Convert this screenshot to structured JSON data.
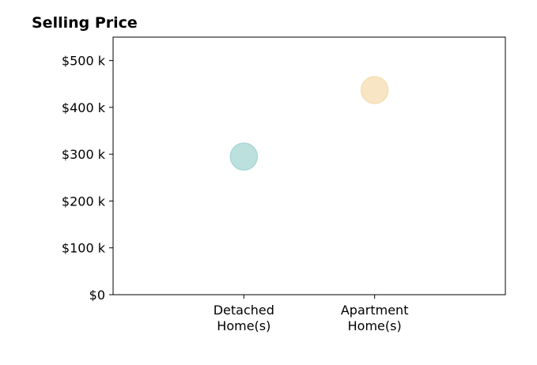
{
  "chart_data": {
    "type": "scatter",
    "title": "Selling Price",
    "xlabel": "",
    "ylabel": "",
    "categories": [
      [
        "Detached",
        "Home(s)"
      ],
      [
        "Apartment",
        "Home(s)"
      ]
    ],
    "xlim": [
      0,
      3
    ],
    "ylim": [
      0,
      550000
    ],
    "y_ticks": [
      0,
      100000,
      200000,
      300000,
      400000,
      500000
    ],
    "y_tick_labels": [
      "$0",
      "$100 k",
      "$200 k",
      "$300 k",
      "$400 k",
      "$500 k"
    ],
    "points": [
      {
        "category_index": 0,
        "x": 1,
        "y": 295000,
        "color": "#aad8d6"
      },
      {
        "category_index": 1,
        "x": 2,
        "y": 437000,
        "color": "#f5dfb4"
      }
    ],
    "grid": false,
    "legend": "none"
  }
}
